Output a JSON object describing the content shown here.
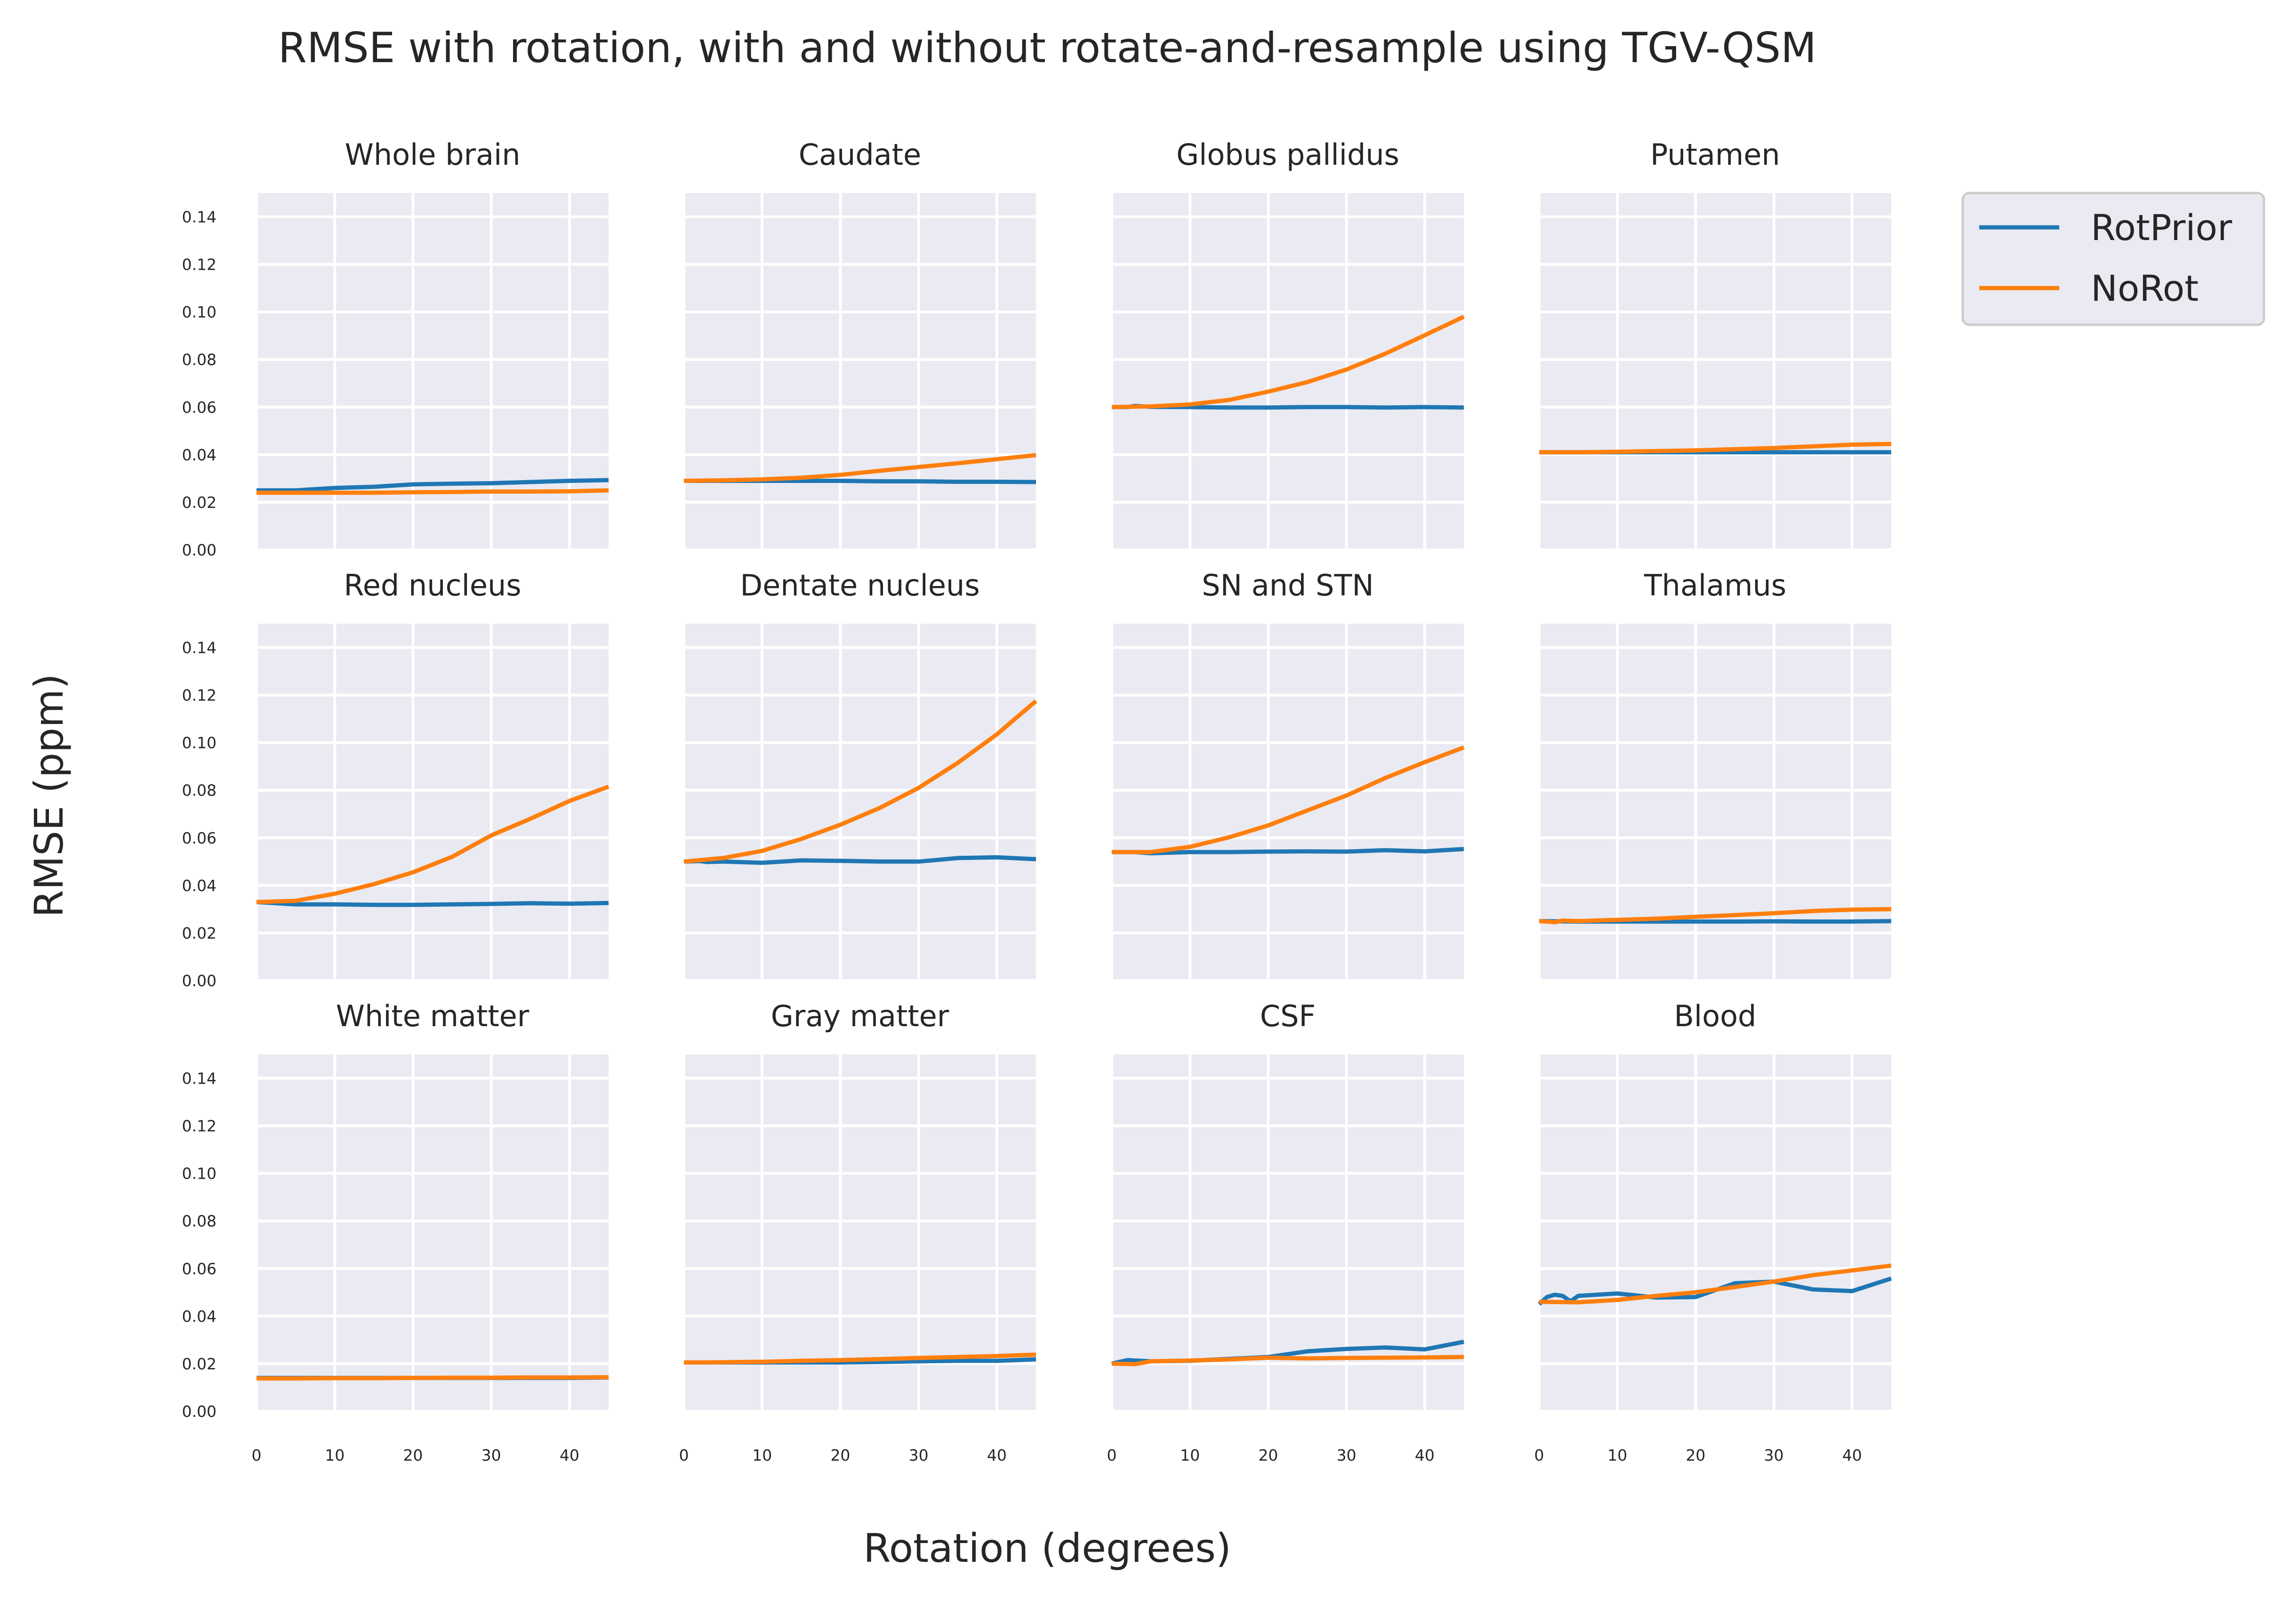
{
  "figure": {
    "title": "RMSE with rotation, with and without rotate-and-resample using TGV-QSM",
    "xlabel": "Rotation (degrees)",
    "ylabel": "RMSE (ppm)"
  },
  "legend": {
    "placement": "right",
    "entries": [
      {
        "name": "RotPrior",
        "color": "#1f77b4"
      },
      {
        "name": "NoRot",
        "color": "#ff7f0e"
      }
    ]
  },
  "chart_data": [
    {
      "type": "line",
      "title": "Whole brain",
      "xlim": [
        0,
        45
      ],
      "ylim": [
        0,
        0.15
      ],
      "grid": true,
      "series": [
        {
          "name": "RotPrior",
          "x": [
            0,
            5,
            10,
            15,
            20,
            25,
            30,
            35,
            40,
            45
          ],
          "y": [
            0.025,
            0.025,
            0.026,
            0.0265,
            0.0275,
            0.0278,
            0.028,
            0.0285,
            0.029,
            0.0293
          ]
        },
        {
          "name": "NoRot",
          "x": [
            0,
            5,
            10,
            15,
            20,
            25,
            30,
            35,
            40,
            45
          ],
          "y": [
            0.024,
            0.024,
            0.024,
            0.024,
            0.0242,
            0.0243,
            0.0245,
            0.0245,
            0.0246,
            0.025
          ]
        }
      ]
    },
    {
      "type": "line",
      "title": "Caudate",
      "xlim": [
        0,
        45
      ],
      "ylim": [
        0,
        0.15
      ],
      "grid": true,
      "series": [
        {
          "name": "RotPrior",
          "x": [
            0,
            5,
            10,
            15,
            20,
            25,
            30,
            35,
            40,
            45
          ],
          "y": [
            0.029,
            0.029,
            0.029,
            0.029,
            0.029,
            0.0288,
            0.0288,
            0.0286,
            0.0286,
            0.0285
          ]
        },
        {
          "name": "NoRot",
          "x": [
            0,
            5,
            10,
            15,
            20,
            25,
            30,
            35,
            40,
            45
          ],
          "y": [
            0.029,
            0.0292,
            0.0296,
            0.0303,
            0.0315,
            0.0332,
            0.0348,
            0.0364,
            0.0381,
            0.0398
          ]
        }
      ]
    },
    {
      "type": "line",
      "title": "Globus pallidus",
      "xlim": [
        0,
        45
      ],
      "ylim": [
        0,
        0.15
      ],
      "grid": true,
      "series": [
        {
          "name": "RotPrior",
          "x": [
            0,
            2,
            3,
            5,
            10,
            15,
            20,
            25,
            30,
            35,
            40,
            45
          ],
          "y": [
            0.06,
            0.06,
            0.0605,
            0.0601,
            0.06,
            0.0598,
            0.0598,
            0.06,
            0.06,
            0.0598,
            0.06,
            0.0598
          ]
        },
        {
          "name": "NoRot",
          "x": [
            0,
            5,
            10,
            15,
            20,
            25,
            30,
            35,
            40,
            45
          ],
          "y": [
            0.06,
            0.0603,
            0.0611,
            0.063,
            0.0665,
            0.0705,
            0.0758,
            0.0825,
            0.0902,
            0.098
          ]
        }
      ]
    },
    {
      "type": "line",
      "title": "Putamen",
      "xlim": [
        0,
        45
      ],
      "ylim": [
        0,
        0.15
      ],
      "grid": true,
      "series": [
        {
          "name": "RotPrior",
          "x": [
            0,
            5,
            10,
            15,
            20,
            25,
            30,
            35,
            40,
            45
          ],
          "y": [
            0.041,
            0.041,
            0.041,
            0.041,
            0.041,
            0.041,
            0.041,
            0.041,
            0.041,
            0.041
          ]
        },
        {
          "name": "NoRot",
          "x": [
            0,
            5,
            10,
            15,
            20,
            25,
            30,
            35,
            40,
            45
          ],
          "y": [
            0.041,
            0.041,
            0.0412,
            0.0415,
            0.0418,
            0.0423,
            0.0428,
            0.0435,
            0.0442,
            0.0445
          ]
        }
      ]
    },
    {
      "type": "line",
      "title": "Red nucleus",
      "xlim": [
        0,
        45
      ],
      "ylim": [
        0,
        0.15
      ],
      "grid": true,
      "series": [
        {
          "name": "RotPrior",
          "x": [
            0,
            5,
            10,
            15,
            20,
            25,
            30,
            35,
            40,
            45
          ],
          "y": [
            0.033,
            0.032,
            0.032,
            0.0318,
            0.0318,
            0.032,
            0.0322,
            0.0325,
            0.0323,
            0.0326
          ]
        },
        {
          "name": "NoRot",
          "x": [
            0,
            5,
            10,
            15,
            20,
            25,
            30,
            35,
            40,
            45
          ],
          "y": [
            0.033,
            0.0335,
            0.0365,
            0.0405,
            0.0455,
            0.052,
            0.061,
            0.068,
            0.0755,
            0.0815
          ]
        }
      ]
    },
    {
      "type": "line",
      "title": "Dentate nucleus",
      "xlim": [
        0,
        45
      ],
      "ylim": [
        0,
        0.15
      ],
      "grid": true,
      "series": [
        {
          "name": "RotPrior",
          "x": [
            0,
            2,
            3,
            5,
            10,
            15,
            20,
            25,
            30,
            35,
            40,
            45
          ],
          "y": [
            0.05,
            0.0502,
            0.0498,
            0.05,
            0.0495,
            0.0505,
            0.0503,
            0.05,
            0.05,
            0.0515,
            0.0518,
            0.051
          ]
        },
        {
          "name": "NoRot",
          "x": [
            0,
            5,
            10,
            15,
            20,
            25,
            30,
            35,
            40,
            45
          ],
          "y": [
            0.05,
            0.0515,
            0.0545,
            0.0595,
            0.0655,
            0.0725,
            0.081,
            0.0915,
            0.1035,
            0.1175
          ]
        }
      ]
    },
    {
      "type": "line",
      "title": "SN and STN",
      "xlim": [
        0,
        45
      ],
      "ylim": [
        0,
        0.15
      ],
      "grid": true,
      "series": [
        {
          "name": "RotPrior",
          "x": [
            0,
            3,
            5,
            10,
            15,
            20,
            25,
            30,
            35,
            40,
            45
          ],
          "y": [
            0.054,
            0.054,
            0.0535,
            0.054,
            0.054,
            0.0542,
            0.0543,
            0.0542,
            0.0548,
            0.0543,
            0.0553
          ]
        },
        {
          "name": "NoRot",
          "x": [
            0,
            5,
            10,
            15,
            20,
            25,
            30,
            35,
            40,
            45
          ],
          "y": [
            0.054,
            0.054,
            0.0562,
            0.0602,
            0.0652,
            0.0715,
            0.0778,
            0.0852,
            0.0918,
            0.098
          ]
        }
      ]
    },
    {
      "type": "line",
      "title": "Thalamus",
      "xlim": [
        0,
        45
      ],
      "ylim": [
        0,
        0.15
      ],
      "grid": true,
      "series": [
        {
          "name": "RotPrior",
          "x": [
            0,
            5,
            10,
            15,
            20,
            25,
            30,
            35,
            40,
            45
          ],
          "y": [
            0.025,
            0.0248,
            0.0248,
            0.0248,
            0.0248,
            0.0248,
            0.0249,
            0.0248,
            0.0248,
            0.025
          ]
        },
        {
          "name": "NoRot",
          "x": [
            0,
            2,
            3,
            5,
            10,
            15,
            20,
            25,
            30,
            35,
            40,
            45
          ],
          "y": [
            0.025,
            0.0245,
            0.0252,
            0.025,
            0.0255,
            0.026,
            0.0268,
            0.0275,
            0.0283,
            0.0292,
            0.0298,
            0.03
          ]
        }
      ]
    },
    {
      "type": "line",
      "title": "White matter",
      "xlim": [
        0,
        45
      ],
      "ylim": [
        0,
        0.15
      ],
      "grid": true,
      "series": [
        {
          "name": "RotPrior",
          "x": [
            0,
            5,
            10,
            15,
            20,
            25,
            30,
            35,
            40,
            45
          ],
          "y": [
            0.014,
            0.014,
            0.014,
            0.014,
            0.014,
            0.014,
            0.014,
            0.014,
            0.014,
            0.0142
          ]
        },
        {
          "name": "NoRot",
          "x": [
            0,
            5,
            10,
            15,
            20,
            25,
            30,
            35,
            40,
            45
          ],
          "y": [
            0.0138,
            0.0138,
            0.0139,
            0.0139,
            0.014,
            0.0141,
            0.0141,
            0.0142,
            0.0142,
            0.0143
          ]
        }
      ]
    },
    {
      "type": "line",
      "title": "Gray matter",
      "xlim": [
        0,
        45
      ],
      "ylim": [
        0,
        0.15
      ],
      "grid": true,
      "series": [
        {
          "name": "RotPrior",
          "x": [
            0,
            5,
            10,
            15,
            20,
            25,
            30,
            35,
            40,
            45
          ],
          "y": [
            0.0205,
            0.0205,
            0.0205,
            0.0205,
            0.0205,
            0.0207,
            0.021,
            0.0212,
            0.0212,
            0.0218
          ]
        },
        {
          "name": "NoRot",
          "x": [
            0,
            5,
            10,
            15,
            20,
            25,
            30,
            35,
            40,
            45
          ],
          "y": [
            0.0205,
            0.0206,
            0.0208,
            0.0212,
            0.0215,
            0.0219,
            0.0224,
            0.0228,
            0.0232,
            0.0238
          ]
        }
      ]
    },
    {
      "type": "line",
      "title": "CSF",
      "xlim": [
        0,
        45
      ],
      "ylim": [
        0,
        0.15
      ],
      "grid": true,
      "series": [
        {
          "name": "RotPrior",
          "x": [
            0,
            2,
            5,
            10,
            15,
            20,
            25,
            30,
            35,
            40,
            45
          ],
          "y": [
            0.02,
            0.0215,
            0.021,
            0.0212,
            0.022,
            0.0228,
            0.0252,
            0.0262,
            0.0268,
            0.026,
            0.0292
          ]
        },
        {
          "name": "NoRot",
          "x": [
            0,
            3,
            5,
            10,
            15,
            20,
            25,
            30,
            35,
            40,
            45
          ],
          "y": [
            0.02,
            0.0198,
            0.021,
            0.0213,
            0.0218,
            0.0225,
            0.0222,
            0.0224,
            0.0225,
            0.0226,
            0.0228
          ]
        }
      ]
    },
    {
      "type": "line",
      "title": "Blood",
      "xlim": [
        0,
        45
      ],
      "ylim": [
        0,
        0.15
      ],
      "grid": true,
      "series": [
        {
          "name": "RotPrior",
          "x": [
            0,
            1,
            2,
            3,
            4,
            5,
            10,
            15,
            20,
            25,
            30,
            35,
            40,
            45
          ],
          "y": [
            0.045,
            0.048,
            0.049,
            0.0485,
            0.0462,
            0.0485,
            0.0495,
            0.0478,
            0.048,
            0.0538,
            0.0545,
            0.0512,
            0.0505,
            0.0558
          ]
        },
        {
          "name": "NoRot",
          "x": [
            0,
            5,
            10,
            15,
            20,
            25,
            30,
            35,
            40,
            45
          ],
          "y": [
            0.046,
            0.0458,
            0.0468,
            0.0485,
            0.05,
            0.0522,
            0.0545,
            0.0572,
            0.0592,
            0.0612
          ]
        }
      ]
    }
  ]
}
